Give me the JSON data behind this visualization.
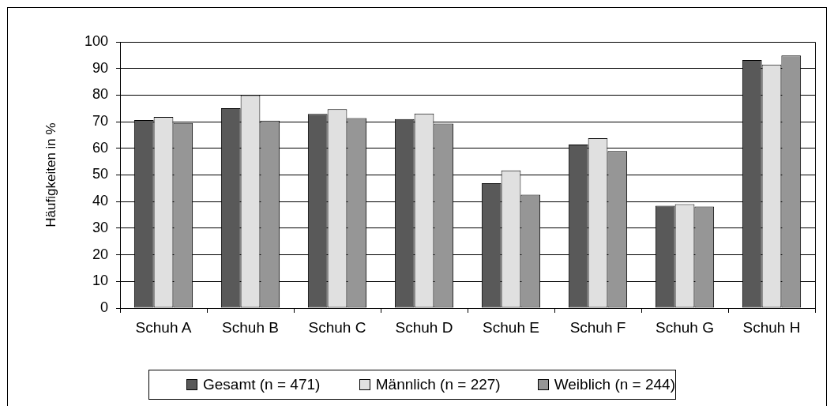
{
  "chart_data": {
    "type": "bar",
    "ylabel": "Häufigkeiten in %",
    "categories": [
      "Schuh A",
      "Schuh B",
      "Schuh C",
      "Schuh D",
      "Schuh E",
      "Schuh F",
      "Schuh G",
      "Schuh H"
    ],
    "series": [
      {
        "name": "Gesamt (n = 471)",
        "color": "#595959",
        "values": [
          70.6,
          75.1,
          72.9,
          71.0,
          46.9,
          61.4,
          38.4,
          93.2
        ]
      },
      {
        "name": "Männlich (n = 227)",
        "color": "#e0e0e0",
        "values": [
          71.8,
          80.0,
          74.7,
          73.1,
          51.7,
          63.8,
          39.0,
          91.5
        ]
      },
      {
        "name": "Weiblich (n = 244)",
        "color": "#969696",
        "values": [
          69.5,
          70.4,
          71.4,
          69.3,
          42.6,
          59.0,
          38.1,
          94.9
        ]
      }
    ],
    "ylim": [
      0,
      100
    ],
    "yticks": [
      0,
      10,
      20,
      30,
      40,
      50,
      60,
      70,
      80,
      90,
      100
    ],
    "grid": "y",
    "legend": "bottom"
  }
}
